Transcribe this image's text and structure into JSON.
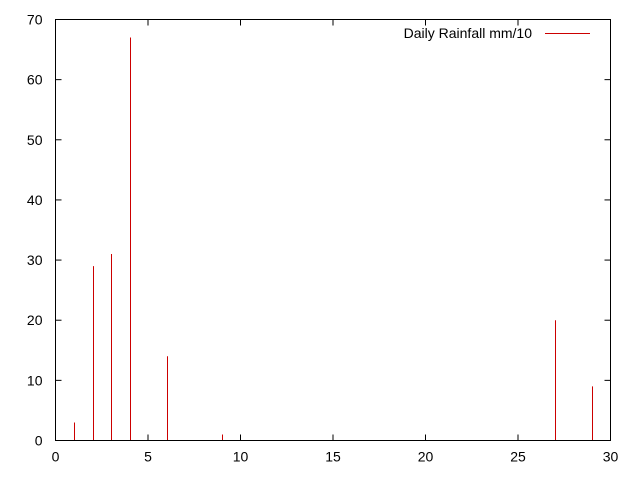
{
  "chart_data": {
    "type": "bar",
    "style": "impulses",
    "title": "",
    "xlabel": "",
    "ylabel": "",
    "xlim": [
      0,
      30
    ],
    "ylim": [
      0,
      70
    ],
    "xticks": [
      0,
      5,
      10,
      15,
      20,
      25,
      30
    ],
    "yticks": [
      0,
      10,
      20,
      30,
      40,
      50,
      60,
      70
    ],
    "grid": false,
    "legend": {
      "placement": "top-right"
    },
    "series": [
      {
        "name": "Daily Rainfall mm/10",
        "color": "#cc0000",
        "x": [
          1,
          2,
          3,
          4,
          6,
          9,
          27,
          29
        ],
        "values": [
          3,
          29,
          31,
          67,
          14,
          1,
          20,
          9
        ]
      }
    ]
  }
}
